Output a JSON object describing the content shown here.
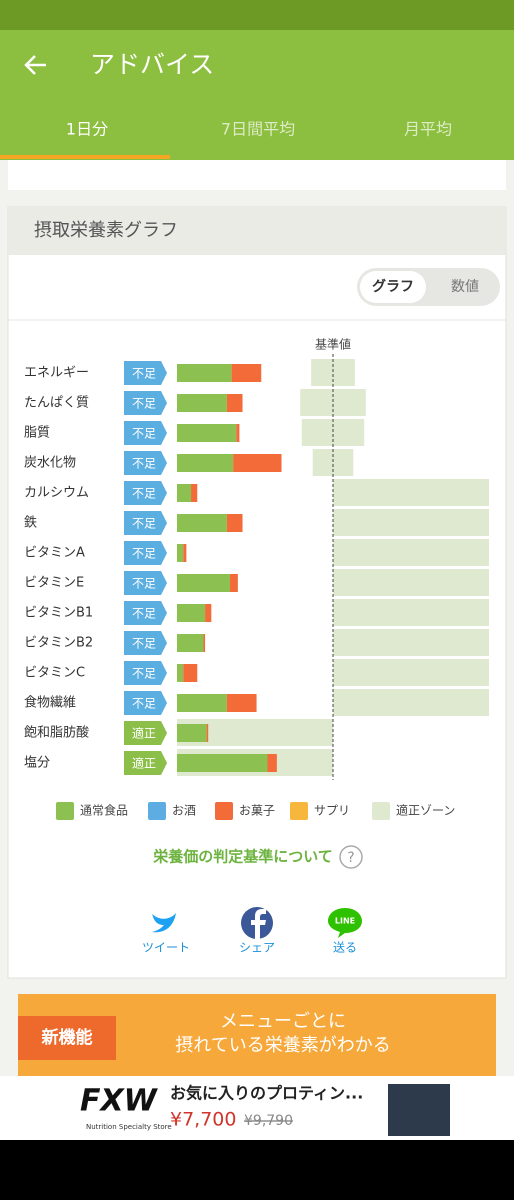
{
  "app_bar": {
    "title": "アドバイス"
  },
  "tabs": [
    "1日分",
    "7日間平均",
    "月平均"
  ],
  "card": {
    "title": "摂取栄養素グラフ",
    "toggle": [
      "グラフ",
      "数値"
    ]
  },
  "chart_data": {
    "type": "stacked-bar-horizontal",
    "reference_line": {
      "label": "基準値",
      "value": 100
    },
    "xlim": [
      0,
      200
    ],
    "categories": [
      "エネルギー",
      "たんぱく質",
      "脂質",
      "炭水化物",
      "カルシウム",
      "鉄",
      "ビタミンA",
      "ビタミンE",
      "ビタミンB1",
      "ビタミンB2",
      "ビタミンC",
      "食物繊維",
      "飽和脂肪酸",
      "塩分"
    ],
    "status": [
      {
        "label": "不足",
        "color": "#5aaee0"
      },
      {
        "label": "不足",
        "color": "#5aaee0"
      },
      {
        "label": "不足",
        "color": "#5aaee0"
      },
      {
        "label": "不足",
        "color": "#5aaee0"
      },
      {
        "label": "不足",
        "color": "#5aaee0"
      },
      {
        "label": "不足",
        "color": "#5aaee0"
      },
      {
        "label": "不足",
        "color": "#5aaee0"
      },
      {
        "label": "不足",
        "color": "#5aaee0"
      },
      {
        "label": "不足",
        "color": "#5aaee0"
      },
      {
        "label": "不足",
        "color": "#5aaee0"
      },
      {
        "label": "不足",
        "color": "#5aaee0"
      },
      {
        "label": "不足",
        "color": "#5aaee0"
      },
      {
        "label": "適正",
        "color": "#8cbf4a"
      },
      {
        "label": "適正",
        "color": "#8cbf4a"
      }
    ],
    "series": [
      {
        "name": "通常食品",
        "color": "#8cc152",
        "values": [
          35,
          32,
          38,
          36,
          9,
          32,
          4,
          34,
          18,
          17,
          4,
          32,
          19,
          58
        ]
      },
      {
        "name": "お酒",
        "color": "#5dade2",
        "values": [
          0,
          0,
          0,
          0,
          0,
          0,
          0,
          0,
          0,
          0,
          0,
          0,
          0,
          0
        ]
      },
      {
        "name": "お菓子",
        "color": "#f26b38",
        "values": [
          19,
          10,
          2,
          31,
          4,
          10,
          2,
          5,
          4,
          1,
          9,
          19,
          1,
          6
        ]
      },
      {
        "name": "サプリ",
        "color": "#f6b73c",
        "values": [
          0,
          0,
          0,
          0,
          0,
          0,
          0,
          0,
          0,
          0,
          0,
          0,
          0,
          0
        ]
      }
    ],
    "zone": {
      "name": "適正ゾーン",
      "color": "#dfe9cf",
      "low": [
        86,
        79,
        80,
        87,
        100,
        100,
        100,
        100,
        100,
        100,
        100,
        100,
        0,
        0
      ],
      "high": [
        114,
        121,
        120,
        113,
        200,
        200,
        200,
        200,
        200,
        200,
        200,
        200,
        100,
        100
      ]
    }
  },
  "criteria_link": {
    "text": "栄養価の判定基準について",
    "icon": "?"
  },
  "share": [
    {
      "label": "ツイート"
    },
    {
      "label": "シェア"
    },
    {
      "label": "送る",
      "icon": "LINE"
    }
  ],
  "banner": {
    "badge": "新機能",
    "lines": [
      "メニューごとに",
      "摂れている栄養素がわかる"
    ]
  },
  "ad": {
    "brand": "FXW",
    "tagline": "Nutrition Specialty Store",
    "title": "お気に入りのプロティン...",
    "price": "¥7,700",
    "old_price": "¥9,790"
  }
}
